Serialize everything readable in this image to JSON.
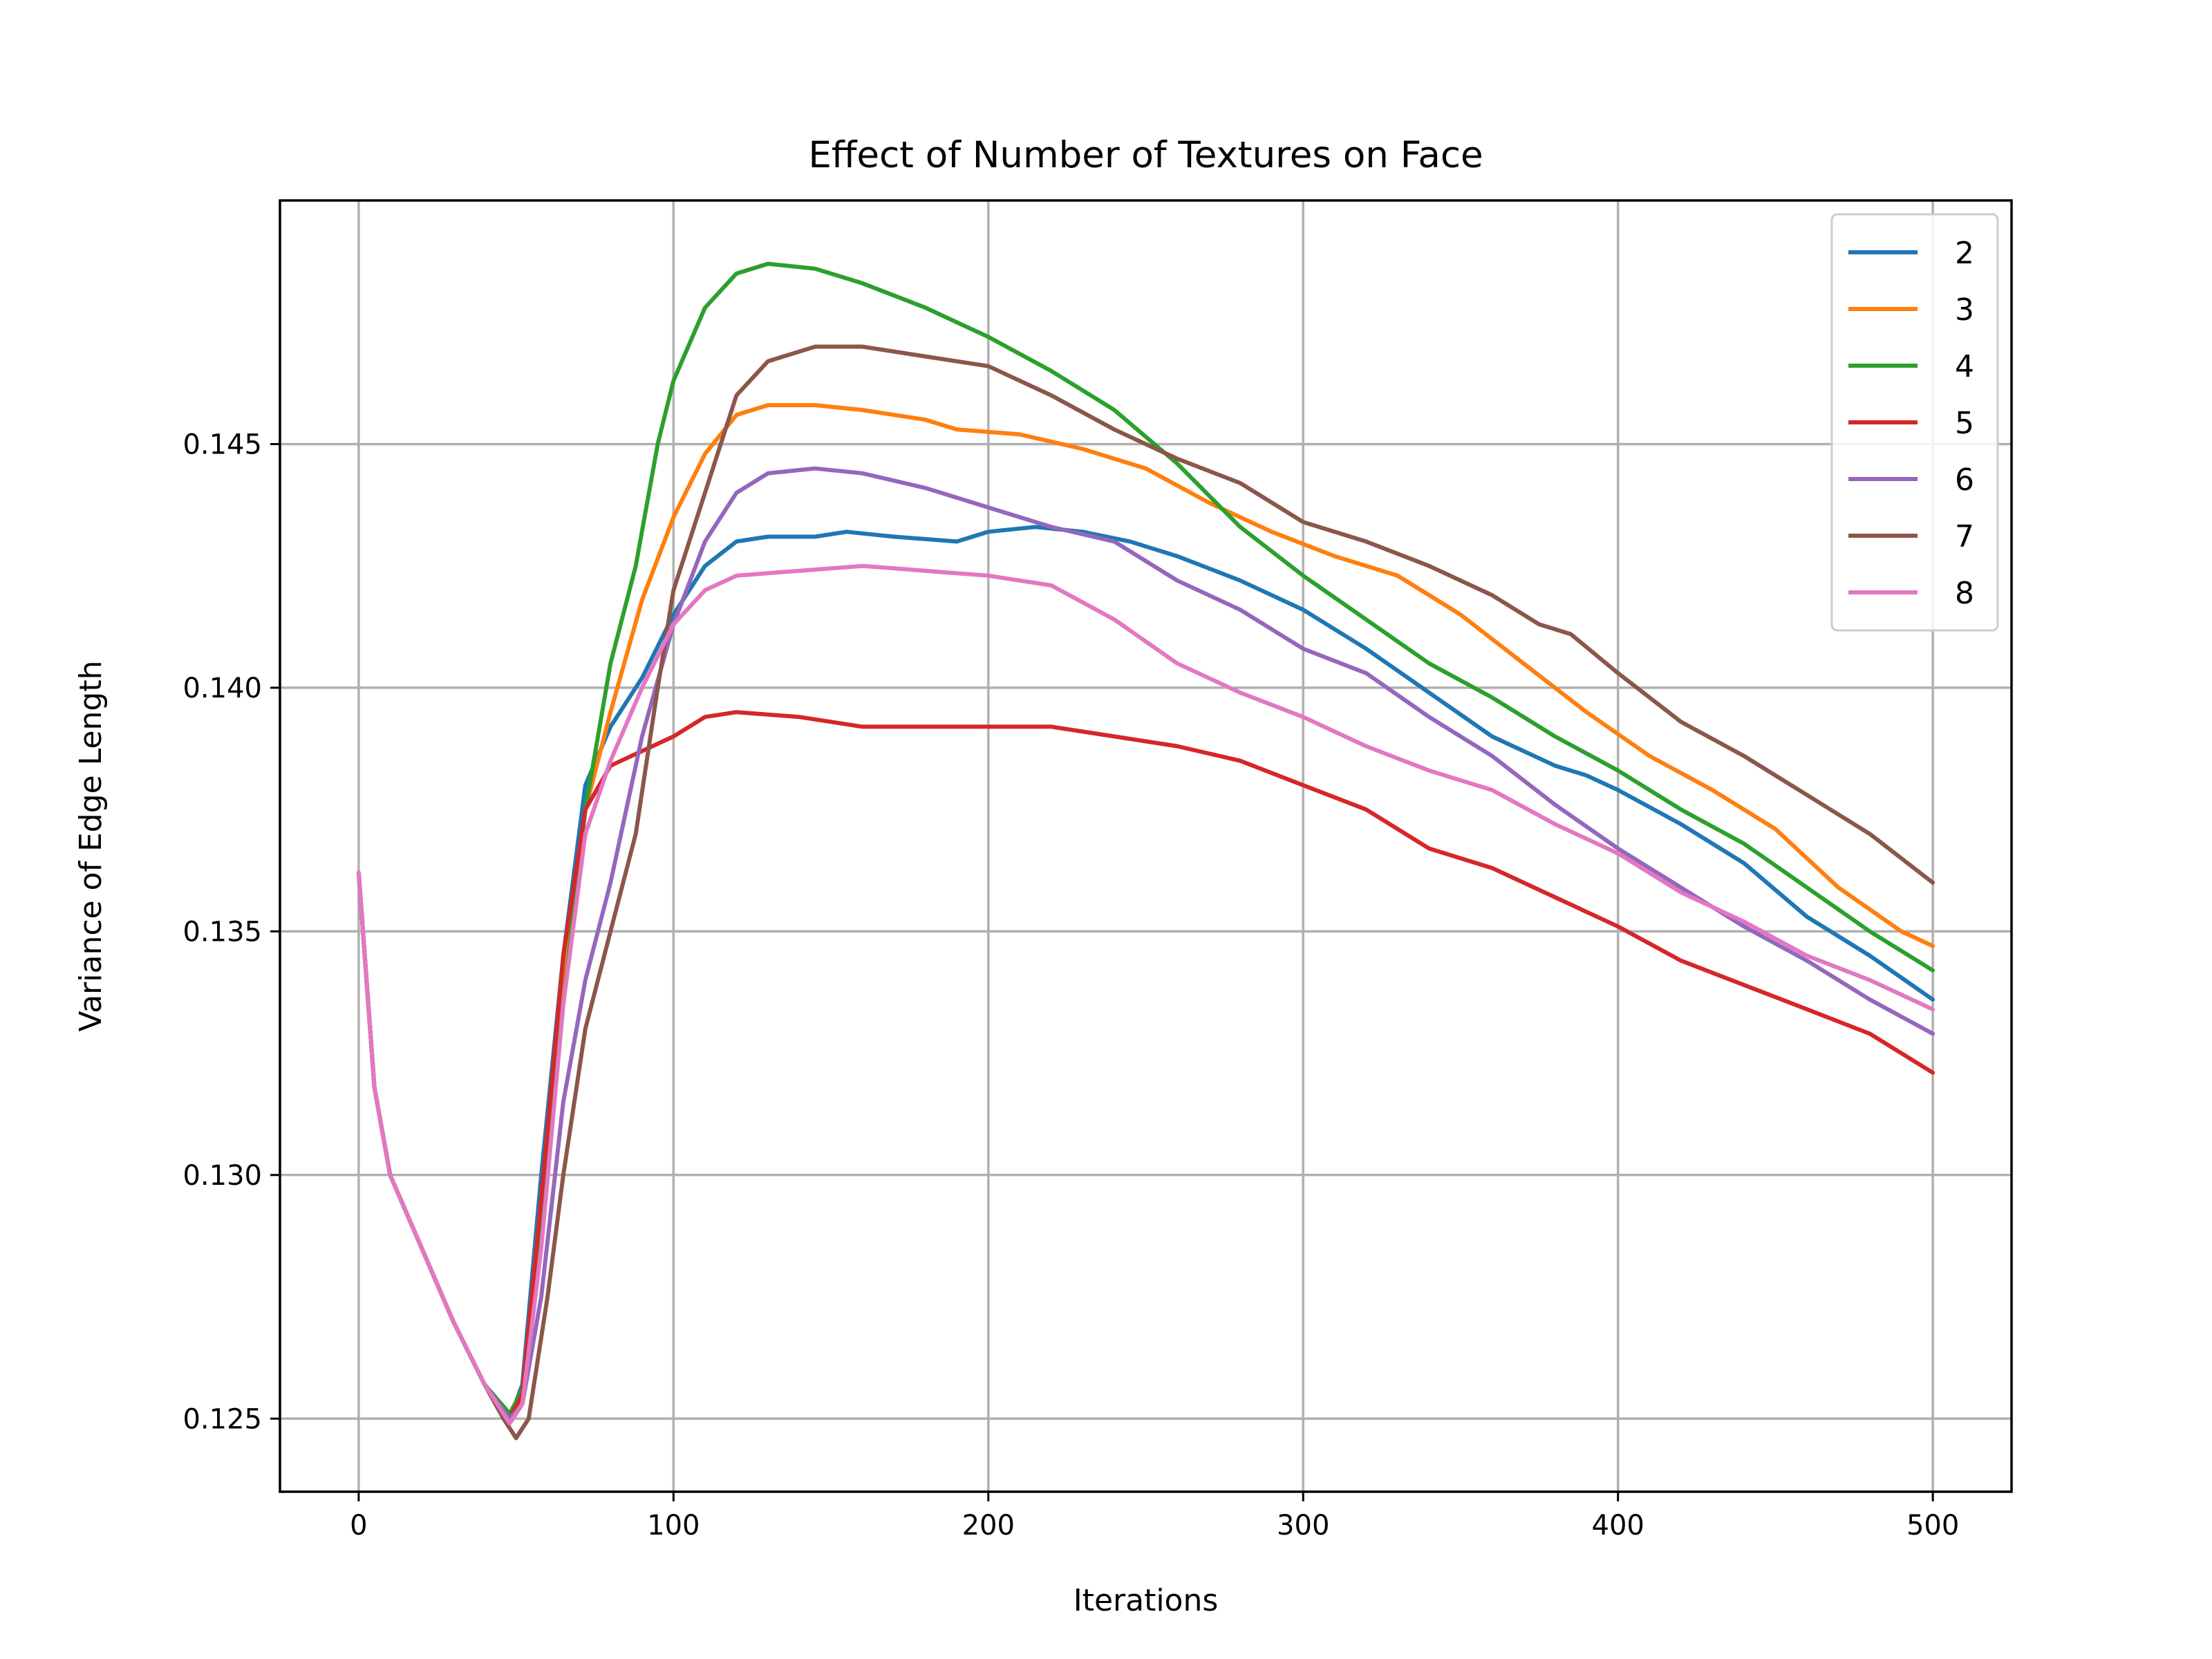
{
  "chart_data": {
    "type": "line",
    "title": "Effect of Number of Textures on Face",
    "xlabel": "Iterations",
    "ylabel": "Variance of Edge Length",
    "xlim": [
      -25,
      525
    ],
    "ylim": [
      0.1235,
      0.15
    ],
    "xticks": [
      0,
      100,
      200,
      300,
      400,
      500
    ],
    "xtick_labels": [
      "0",
      "100",
      "200",
      "300",
      "400",
      "500"
    ],
    "yticks": [
      0.125,
      0.13,
      0.135,
      0.14,
      0.145
    ],
    "ytick_labels": [
      "0.125",
      "0.130",
      "0.135",
      "0.140",
      "0.145"
    ],
    "grid": true,
    "legend_position": "top-right",
    "series": [
      {
        "name": "2",
        "color": "#1f77b4",
        "points": [
          [
            0,
            0.1362
          ],
          [
            5,
            0.1318
          ],
          [
            10,
            0.13
          ],
          [
            20,
            0.1285
          ],
          [
            30,
            0.127
          ],
          [
            40,
            0.1257
          ],
          [
            48,
            0.125
          ],
          [
            52,
            0.1257
          ],
          [
            58,
            0.13
          ],
          [
            65,
            0.1345
          ],
          [
            72,
            0.138
          ],
          [
            80,
            0.1392
          ],
          [
            90,
            0.1402
          ],
          [
            100,
            0.1415
          ],
          [
            110,
            0.1425
          ],
          [
            120,
            0.143
          ],
          [
            130,
            0.1431
          ],
          [
            145,
            0.1431
          ],
          [
            155,
            0.1432
          ],
          [
            170,
            0.1431
          ],
          [
            190,
            0.143
          ],
          [
            200,
            0.1432
          ],
          [
            215,
            0.1433
          ],
          [
            230,
            0.1432
          ],
          [
            245,
            0.143
          ],
          [
            260,
            0.1427
          ],
          [
            280,
            0.1422
          ],
          [
            300,
            0.1416
          ],
          [
            320,
            0.1408
          ],
          [
            340,
            0.1399
          ],
          [
            360,
            0.139
          ],
          [
            380,
            0.1384
          ],
          [
            390,
            0.1382
          ],
          [
            400,
            0.1379
          ],
          [
            420,
            0.1372
          ],
          [
            440,
            0.1364
          ],
          [
            460,
            0.1353
          ],
          [
            480,
            0.1345
          ],
          [
            500,
            0.1336
          ]
        ]
      },
      {
        "name": "3",
        "color": "#ff7f0e",
        "points": [
          [
            0,
            0.1362
          ],
          [
            5,
            0.1318
          ],
          [
            10,
            0.13
          ],
          [
            20,
            0.1285
          ],
          [
            30,
            0.127
          ],
          [
            40,
            0.1257
          ],
          [
            48,
            0.125
          ],
          [
            52,
            0.1255
          ],
          [
            58,
            0.1295
          ],
          [
            65,
            0.134
          ],
          [
            72,
            0.1375
          ],
          [
            80,
            0.1395
          ],
          [
            90,
            0.1418
          ],
          [
            100,
            0.1435
          ],
          [
            110,
            0.1448
          ],
          [
            120,
            0.1456
          ],
          [
            130,
            0.1458
          ],
          [
            145,
            0.1458
          ],
          [
            160,
            0.1457
          ],
          [
            180,
            0.1455
          ],
          [
            190,
            0.1453
          ],
          [
            210,
            0.1452
          ],
          [
            230,
            0.1449
          ],
          [
            250,
            0.1445
          ],
          [
            270,
            0.1438
          ],
          [
            290,
            0.1432
          ],
          [
            310,
            0.1427
          ],
          [
            330,
            0.1423
          ],
          [
            350,
            0.1415
          ],
          [
            370,
            0.1405
          ],
          [
            390,
            0.1395
          ],
          [
            410,
            0.1386
          ],
          [
            430,
            0.1379
          ],
          [
            450,
            0.1371
          ],
          [
            470,
            0.1359
          ],
          [
            490,
            0.135
          ],
          [
            500,
            0.1347
          ]
        ]
      },
      {
        "name": "4",
        "color": "#2ca02c",
        "points": [
          [
            0,
            0.1362
          ],
          [
            5,
            0.1318
          ],
          [
            10,
            0.13
          ],
          [
            20,
            0.1285
          ],
          [
            30,
            0.127
          ],
          [
            40,
            0.1257
          ],
          [
            48,
            0.1251
          ],
          [
            52,
            0.1256
          ],
          [
            58,
            0.129
          ],
          [
            65,
            0.1335
          ],
          [
            72,
            0.1375
          ],
          [
            80,
            0.1405
          ],
          [
            88,
            0.1425
          ],
          [
            95,
            0.145
          ],
          [
            100,
            0.1463
          ],
          [
            110,
            0.1478
          ],
          [
            120,
            0.1485
          ],
          [
            130,
            0.1487
          ],
          [
            145,
            0.1486
          ],
          [
            160,
            0.1483
          ],
          [
            180,
            0.1478
          ],
          [
            200,
            0.1472
          ],
          [
            220,
            0.1465
          ],
          [
            240,
            0.1457
          ],
          [
            260,
            0.1446
          ],
          [
            280,
            0.1433
          ],
          [
            300,
            0.1423
          ],
          [
            320,
            0.1414
          ],
          [
            340,
            0.1405
          ],
          [
            360,
            0.1398
          ],
          [
            380,
            0.139
          ],
          [
            400,
            0.1383
          ],
          [
            420,
            0.1375
          ],
          [
            440,
            0.1368
          ],
          [
            460,
            0.1359
          ],
          [
            480,
            0.135
          ],
          [
            500,
            0.1342
          ]
        ]
      },
      {
        "name": "5",
        "color": "#d62728",
        "points": [
          [
            0,
            0.1362
          ],
          [
            5,
            0.1318
          ],
          [
            10,
            0.13
          ],
          [
            20,
            0.1285
          ],
          [
            30,
            0.127
          ],
          [
            40,
            0.1257
          ],
          [
            48,
            0.125
          ],
          [
            52,
            0.1255
          ],
          [
            58,
            0.1295
          ],
          [
            65,
            0.1345
          ],
          [
            72,
            0.1375
          ],
          [
            80,
            0.1384
          ],
          [
            90,
            0.1387
          ],
          [
            100,
            0.139
          ],
          [
            110,
            0.1394
          ],
          [
            120,
            0.1395
          ],
          [
            140,
            0.1394
          ],
          [
            160,
            0.1392
          ],
          [
            180,
            0.1392
          ],
          [
            200,
            0.1392
          ],
          [
            220,
            0.1392
          ],
          [
            240,
            0.139
          ],
          [
            260,
            0.1388
          ],
          [
            280,
            0.1385
          ],
          [
            300,
            0.138
          ],
          [
            320,
            0.1375
          ],
          [
            340,
            0.1367
          ],
          [
            360,
            0.1363
          ],
          [
            380,
            0.1357
          ],
          [
            400,
            0.1351
          ],
          [
            420,
            0.1344
          ],
          [
            440,
            0.1339
          ],
          [
            460,
            0.1334
          ],
          [
            480,
            0.1329
          ],
          [
            500,
            0.1321
          ]
        ]
      },
      {
        "name": "6",
        "color": "#9467bd",
        "points": [
          [
            0,
            0.1362
          ],
          [
            5,
            0.1318
          ],
          [
            10,
            0.13
          ],
          [
            20,
            0.1285
          ],
          [
            30,
            0.127
          ],
          [
            40,
            0.1257
          ],
          [
            48,
            0.125
          ],
          [
            52,
            0.1253
          ],
          [
            58,
            0.1275
          ],
          [
            65,
            0.1315
          ],
          [
            72,
            0.134
          ],
          [
            80,
            0.136
          ],
          [
            90,
            0.139
          ],
          [
            100,
            0.1413
          ],
          [
            110,
            0.143
          ],
          [
            120,
            0.144
          ],
          [
            130,
            0.1444
          ],
          [
            145,
            0.1445
          ],
          [
            160,
            0.1444
          ],
          [
            180,
            0.1441
          ],
          [
            200,
            0.1437
          ],
          [
            220,
            0.1433
          ],
          [
            240,
            0.143
          ],
          [
            260,
            0.1422
          ],
          [
            280,
            0.1416
          ],
          [
            300,
            0.1408
          ],
          [
            320,
            0.1403
          ],
          [
            340,
            0.1394
          ],
          [
            360,
            0.1386
          ],
          [
            380,
            0.1376
          ],
          [
            400,
            0.1367
          ],
          [
            420,
            0.1359
          ],
          [
            440,
            0.1351
          ],
          [
            460,
            0.1344
          ],
          [
            480,
            0.1336
          ],
          [
            500,
            0.1329
          ]
        ]
      },
      {
        "name": "7",
        "color": "#8c564b",
        "points": [
          [
            0,
            0.1362
          ],
          [
            5,
            0.1318
          ],
          [
            10,
            0.13
          ],
          [
            20,
            0.1285
          ],
          [
            30,
            0.127
          ],
          [
            40,
            0.1257
          ],
          [
            46,
            0.125
          ],
          [
            50,
            0.1246
          ],
          [
            54,
            0.125
          ],
          [
            60,
            0.1275
          ],
          [
            65,
            0.13
          ],
          [
            72,
            0.133
          ],
          [
            80,
            0.135
          ],
          [
            88,
            0.137
          ],
          [
            95,
            0.14
          ],
          [
            100,
            0.142
          ],
          [
            110,
            0.144
          ],
          [
            120,
            0.146
          ],
          [
            130,
            0.1467
          ],
          [
            145,
            0.147
          ],
          [
            160,
            0.147
          ],
          [
            180,
            0.1468
          ],
          [
            200,
            0.1466
          ],
          [
            220,
            0.146
          ],
          [
            240,
            0.1453
          ],
          [
            260,
            0.1447
          ],
          [
            280,
            0.1442
          ],
          [
            300,
            0.1434
          ],
          [
            320,
            0.143
          ],
          [
            340,
            0.1425
          ],
          [
            360,
            0.1419
          ],
          [
            375,
            0.1413
          ],
          [
            385,
            0.1411
          ],
          [
            400,
            0.1403
          ],
          [
            420,
            0.1393
          ],
          [
            440,
            0.1386
          ],
          [
            460,
            0.1378
          ],
          [
            480,
            0.137
          ],
          [
            500,
            0.136
          ]
        ]
      },
      {
        "name": "8",
        "color": "#e377c2",
        "points": [
          [
            0,
            0.1362
          ],
          [
            5,
            0.1318
          ],
          [
            10,
            0.13
          ],
          [
            20,
            0.1285
          ],
          [
            30,
            0.127
          ],
          [
            40,
            0.1257
          ],
          [
            48,
            0.1249
          ],
          [
            52,
            0.1253
          ],
          [
            58,
            0.1285
          ],
          [
            65,
            0.1335
          ],
          [
            72,
            0.137
          ],
          [
            80,
            0.1385
          ],
          [
            90,
            0.14
          ],
          [
            100,
            0.1413
          ],
          [
            110,
            0.142
          ],
          [
            120,
            0.1423
          ],
          [
            140,
            0.1424
          ],
          [
            160,
            0.1425
          ],
          [
            180,
            0.1424
          ],
          [
            200,
            0.1423
          ],
          [
            220,
            0.1421
          ],
          [
            240,
            0.1414
          ],
          [
            260,
            0.1405
          ],
          [
            280,
            0.1399
          ],
          [
            300,
            0.1394
          ],
          [
            320,
            0.1388
          ],
          [
            340,
            0.1383
          ],
          [
            360,
            0.1379
          ],
          [
            380,
            0.1372
          ],
          [
            400,
            0.1366
          ],
          [
            420,
            0.1358
          ],
          [
            440,
            0.1352
          ],
          [
            460,
            0.1345
          ],
          [
            480,
            0.134
          ],
          [
            500,
            0.1334
          ]
        ]
      }
    ]
  }
}
